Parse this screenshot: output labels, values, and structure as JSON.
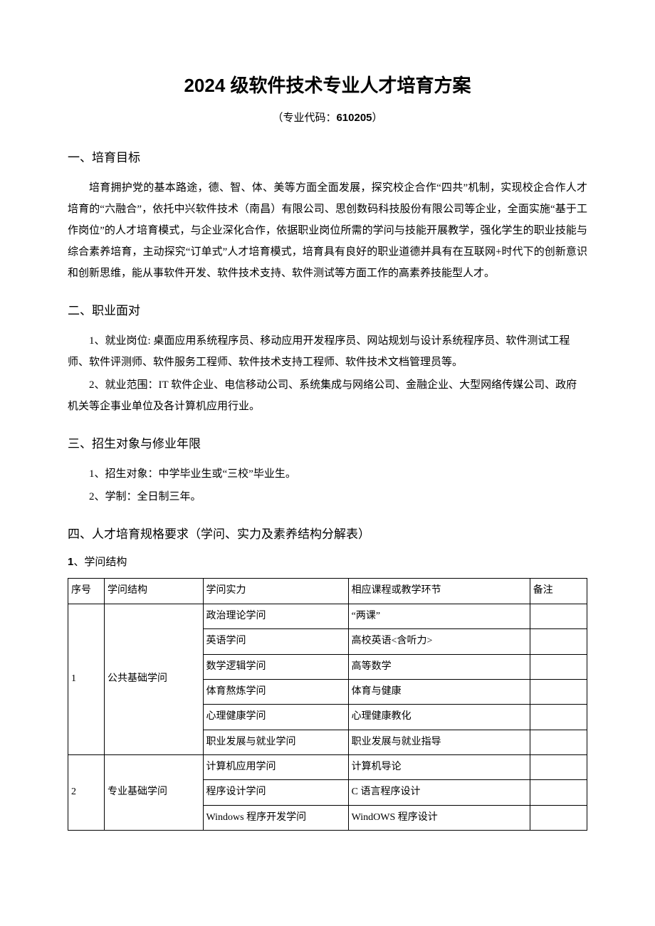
{
  "title": "2024 级软件技术专业人才培育方案",
  "subtitle_prefix": "（专业代码：",
  "subtitle_code": "610205",
  "subtitle_suffix": "）",
  "sections": {
    "s1": {
      "heading": "一、培育目标",
      "para": "培育拥护党的基本路途，德、智、体、美等方面全面发展，探究校企合作“四共”机制，实现校企合作人才培育的“六融合”，依托中兴软件技术（南昌）有限公司、思创数码科技股份有限公司等企业，全面实施“基于工作岗位”的人才培育模式，与企业深化合作，依据职业岗位所需的学问与技能开展教学，强化学生的职业技能与综合素养培育，主动探究“订单式”人才培育模式，培育具有良好的职业道德并具有在互联网+时代下的创新意识和创新思维，能从事软件开发、软件技术支持、软件测试等方面工作的高素养技能型人才。"
    },
    "s2": {
      "heading": "二、职业面对",
      "item1": "1、就业岗位: 桌面应用系统程序员、移动应用开发程序员、网站规划与设计系统程序员、软件测试工程师、软件评测师、软件服务工程师、软件技术支持工程师、软件技术文档管理员等。",
      "item2": "2、就业范围：IT 软件企业、电信移动公司、系统集成与网络公司、金融企业、大型网络传媒公司、政府机关等企事业单位及各计算机应用行业。"
    },
    "s3": {
      "heading": "三、招生对象与修业年限",
      "item1": "1、招生对象：中学毕业生或“三校”毕业生。",
      "item2": "2、学制：全日制三年。"
    },
    "s4": {
      "heading": "四、人才培育规格要求（学问、实力及素养结构分解表）",
      "sub1_num": "1",
      "sub1_text": "、学问结构"
    }
  },
  "table": {
    "headers": {
      "c1": "序号",
      "c2": "学问结构",
      "c3": "学问实力",
      "c4": "相应课程或教学环节",
      "c5": "备注"
    },
    "groups": [
      {
        "seq": "1",
        "structure": "公共基础学问",
        "rows": [
          {
            "ability": "政治理论学问",
            "course": "“两课”",
            "note": ""
          },
          {
            "ability": "英语学问",
            "course": "高校英语<含听力>",
            "note": ""
          },
          {
            "ability": "数学逻辑学问",
            "course": "高等数学",
            "note": ""
          },
          {
            "ability": "体育熬炼学问",
            "course": "体育与健康",
            "note": ""
          },
          {
            "ability": "心理健康学问",
            "course": "心理健康教化",
            "note": ""
          },
          {
            "ability": "职业发展与就业学问",
            "course": "职业发展与就业指导",
            "note": ""
          }
        ]
      },
      {
        "seq": "2",
        "structure": "专业基础学问",
        "rows": [
          {
            "ability": "计算机应用学问",
            "course": "计算机导论",
            "note": ""
          },
          {
            "ability": "程序设计学问",
            "course": "C 语言程序设计",
            "note": ""
          },
          {
            "ability": "Windows 程序开发学问",
            "course": "WindOWS 程序设计",
            "note": ""
          }
        ]
      }
    ]
  },
  "colors": {
    "text": "#000000",
    "background": "#ffffff",
    "border": "#000000"
  }
}
